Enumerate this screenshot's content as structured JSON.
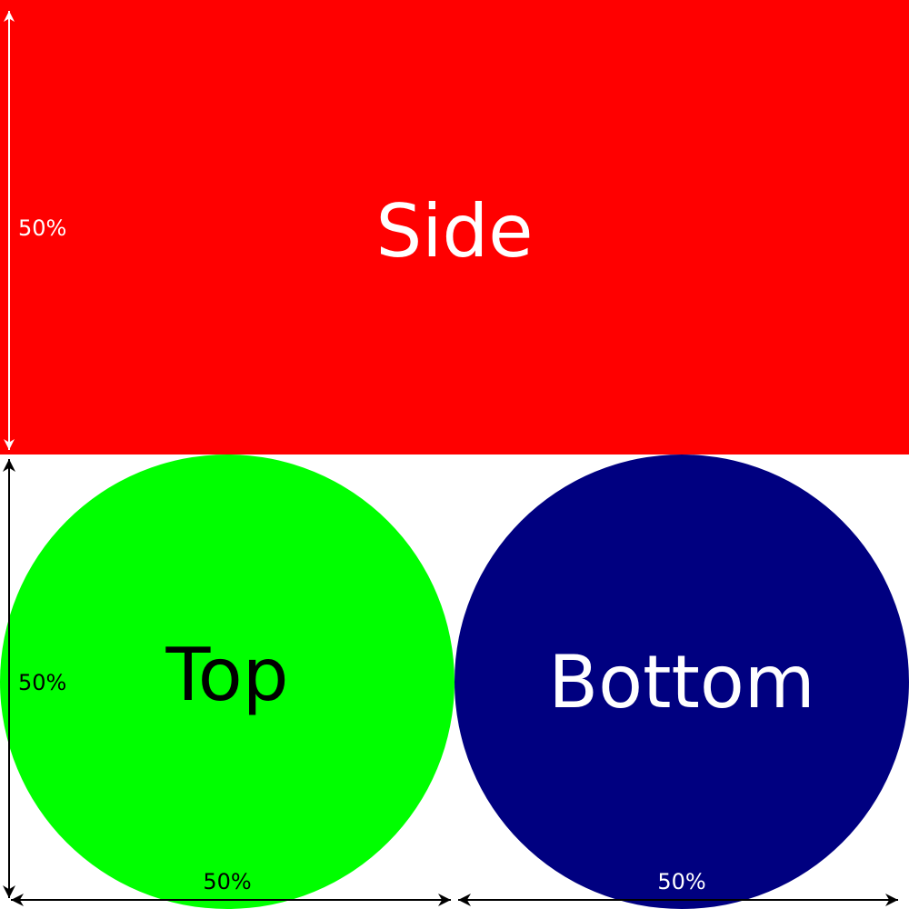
{
  "diagram": {
    "side": {
      "label": "Side",
      "fill": "#ff0000",
      "text_color": "#ffffff"
    },
    "top": {
      "label": "Top",
      "fill": "#00ff00",
      "text_color": "#000000"
    },
    "bottom": {
      "label": "Bottom",
      "fill": "#000080",
      "text_color": "#ffffff"
    },
    "dimensions": {
      "side_height": "50%",
      "lower_height": "50%",
      "top_width": "50%",
      "bottom_width": "50%"
    },
    "arrow_colors": {
      "on_red": "#ffffff",
      "on_white": "#000000",
      "on_navy": "#ffffff"
    }
  }
}
